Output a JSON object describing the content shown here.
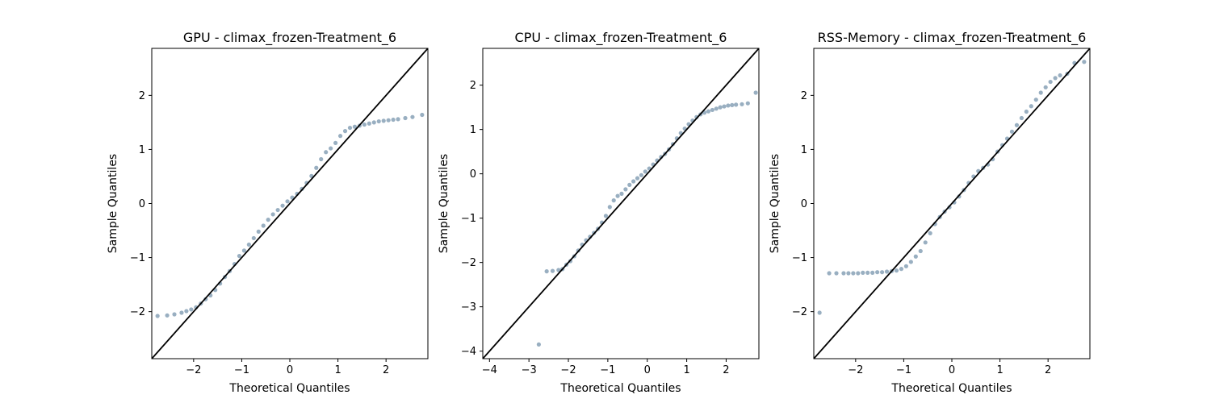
{
  "chart_data": [
    {
      "type": "scatter",
      "title": "GPU - climax_frozen-Treatment_6",
      "xlabel": "Theoretical Quantiles",
      "ylabel": "Sample Quantiles",
      "xlim": [
        -2.87,
        2.87
      ],
      "ylim": [
        -2.87,
        2.87
      ],
      "xticks": [
        -2,
        -1,
        0,
        1,
        2
      ],
      "yticks": [
        -2,
        -1,
        0,
        1,
        2
      ],
      "reference_line": "45-degree",
      "grid": false,
      "point_color": "#466e8e",
      "series": [
        {
          "x": [
            -2.75,
            -2.55,
            -2.4,
            -2.25,
            -2.15,
            -2.05,
            -1.95,
            -1.85,
            -1.75,
            -1.65,
            -1.55,
            -1.45,
            -1.35,
            -1.25,
            -1.15,
            -1.05,
            -0.95,
            -0.85,
            -0.75,
            -0.65,
            -0.55,
            -0.45,
            -0.35,
            -0.25,
            -0.15,
            -0.05,
            0.05,
            0.15,
            0.25,
            0.35,
            0.45,
            0.55,
            0.65,
            0.75,
            0.85,
            0.95,
            1.05,
            1.15,
            1.25,
            1.35,
            1.45,
            1.55,
            1.65,
            1.75,
            1.85,
            1.95,
            2.05,
            2.15,
            2.25,
            2.4,
            2.55,
            2.75
          ],
          "y": [
            -2.08,
            -2.07,
            -2.05,
            -2.02,
            -1.99,
            -1.96,
            -1.92,
            -1.85,
            -1.77,
            -1.7,
            -1.6,
            -1.48,
            -1.36,
            -1.25,
            -1.12,
            -0.97,
            -0.87,
            -0.76,
            -0.64,
            -0.52,
            -0.41,
            -0.3,
            -0.2,
            -0.12,
            -0.04,
            0.04,
            0.11,
            0.18,
            0.27,
            0.38,
            0.51,
            0.66,
            0.82,
            0.95,
            1.02,
            1.12,
            1.25,
            1.34,
            1.4,
            1.42,
            1.44,
            1.46,
            1.48,
            1.5,
            1.52,
            1.53,
            1.54,
            1.55,
            1.56,
            1.58,
            1.6,
            1.64
          ]
        }
      ]
    },
    {
      "type": "scatter",
      "title": "CPU - climax_frozen-Treatment_6",
      "xlabel": "Theoretical Quantiles",
      "ylabel": "Sample Quantiles",
      "xlim": [
        -4.17,
        2.83
      ],
      "ylim": [
        -4.17,
        2.83
      ],
      "xticks": [
        -4,
        -3,
        -2,
        -1,
        0,
        1,
        2
      ],
      "yticks": [
        -4,
        -3,
        -2,
        -1,
        0,
        1,
        2
      ],
      "reference_line": "45-degree",
      "grid": false,
      "point_color": "#466e8e",
      "series": [
        {
          "x": [
            -2.75,
            -2.55,
            -2.4,
            -2.25,
            -2.15,
            -2.05,
            -1.95,
            -1.85,
            -1.75,
            -1.65,
            -1.55,
            -1.45,
            -1.35,
            -1.25,
            -1.15,
            -1.05,
            -0.95,
            -0.85,
            -0.75,
            -0.65,
            -0.55,
            -0.45,
            -0.35,
            -0.25,
            -0.15,
            -0.05,
            0.05,
            0.15,
            0.25,
            0.35,
            0.45,
            0.55,
            0.65,
            0.75,
            0.85,
            0.95,
            1.05,
            1.15,
            1.25,
            1.35,
            1.45,
            1.55,
            1.65,
            1.75,
            1.85,
            1.95,
            2.05,
            2.15,
            2.25,
            2.4,
            2.55,
            2.75
          ],
          "y": [
            -3.85,
            -2.2,
            -2.19,
            -2.17,
            -2.15,
            -2.05,
            -1.97,
            -1.86,
            -1.73,
            -1.6,
            -1.5,
            -1.42,
            -1.33,
            -1.24,
            -1.1,
            -0.95,
            -0.75,
            -0.6,
            -0.5,
            -0.45,
            -0.35,
            -0.25,
            -0.17,
            -0.1,
            -0.03,
            0.05,
            0.12,
            0.21,
            0.3,
            0.38,
            0.45,
            0.55,
            0.67,
            0.8,
            0.92,
            1.02,
            1.12,
            1.2,
            1.28,
            1.34,
            1.38,
            1.41,
            1.44,
            1.47,
            1.5,
            1.52,
            1.54,
            1.55,
            1.56,
            1.57,
            1.59,
            1.83
          ]
        }
      ]
    },
    {
      "type": "scatter",
      "title": "RSS-Memory - climax_frozen-Treatment_6",
      "xlabel": "Theoretical Quantiles",
      "ylabel": "Sample Quantiles",
      "xlim": [
        -2.87,
        2.87
      ],
      "ylim": [
        -2.87,
        2.87
      ],
      "xticks": [
        -2,
        -1,
        0,
        1,
        2
      ],
      "yticks": [
        -2,
        -1,
        0,
        1,
        2
      ],
      "reference_line": "45-degree",
      "grid": false,
      "point_color": "#466e8e",
      "series": [
        {
          "x": [
            -2.75,
            -2.55,
            -2.4,
            -2.25,
            -2.15,
            -2.05,
            -1.95,
            -1.85,
            -1.75,
            -1.65,
            -1.55,
            -1.45,
            -1.35,
            -1.25,
            -1.15,
            -1.05,
            -0.95,
            -0.85,
            -0.75,
            -0.65,
            -0.55,
            -0.45,
            -0.35,
            -0.25,
            -0.15,
            -0.05,
            0.05,
            0.15,
            0.25,
            0.35,
            0.45,
            0.55,
            0.65,
            0.75,
            0.85,
            0.95,
            1.05,
            1.15,
            1.25,
            1.35,
            1.45,
            1.55,
            1.65,
            1.75,
            1.85,
            1.95,
            2.05,
            2.15,
            2.25,
            2.4,
            2.55,
            2.75
          ],
          "y": [
            -2.02,
            -1.29,
            -1.29,
            -1.29,
            -1.29,
            -1.29,
            -1.29,
            -1.28,
            -1.28,
            -1.28,
            -1.27,
            -1.27,
            -1.26,
            -1.25,
            -1.24,
            -1.21,
            -1.16,
            -1.08,
            -0.98,
            -0.88,
            -0.72,
            -0.55,
            -0.38,
            -0.25,
            -0.15,
            -0.07,
            0.02,
            0.13,
            0.25,
            0.38,
            0.5,
            0.6,
            0.66,
            0.72,
            0.82,
            0.96,
            1.08,
            1.2,
            1.33,
            1.45,
            1.58,
            1.7,
            1.8,
            1.92,
            2.05,
            2.15,
            2.25,
            2.32,
            2.37,
            2.4,
            2.6,
            2.62
          ]
        }
      ]
    }
  ]
}
